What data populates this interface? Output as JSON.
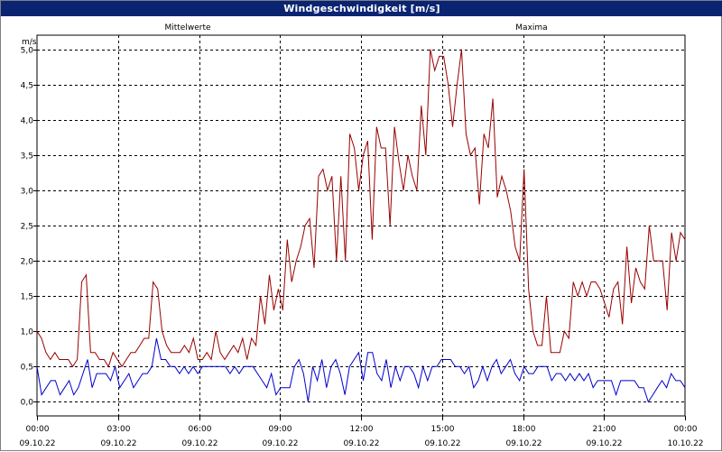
{
  "window": {
    "title": "Windgeschwindigkeit [m/s]"
  },
  "chart_data": {
    "type": "line",
    "title": "Windgeschwindigkeit [m/s]",
    "ylabel": "m/s",
    "ylim": [
      -0.2,
      5.2
    ],
    "yticks": [
      "0,0",
      "0,5",
      "1,0",
      "1,5",
      "2,0",
      "2,5",
      "3,0",
      "3,5",
      "4,0",
      "4,5",
      "5,0"
    ],
    "xlim": [
      0,
      24
    ],
    "xticks": [
      {
        "time": "00:00",
        "date": "09.10.22"
      },
      {
        "time": "03:00",
        "date": "09.10.22"
      },
      {
        "time": "06:00",
        "date": "09.10.22"
      },
      {
        "time": "09:00",
        "date": "09.10.22"
      },
      {
        "time": "12:00",
        "date": "09.10.22"
      },
      {
        "time": "15:00",
        "date": "09.10.22"
      },
      {
        "time": "18:00",
        "date": "09.10.22"
      },
      {
        "time": "21:00",
        "date": "09.10.22"
      },
      {
        "time": "00:00",
        "date": "10.10.22"
      }
    ],
    "grid": true,
    "series": [
      {
        "name": "Mittelwerte",
        "color": "#0000cc",
        "values": [
          0.5,
          0.1,
          0.2,
          0.3,
          0.3,
          0.1,
          0.2,
          0.3,
          0.1,
          0.2,
          0.4,
          0.6,
          0.2,
          0.4,
          0.4,
          0.4,
          0.3,
          0.5,
          0.2,
          0.3,
          0.4,
          0.2,
          0.3,
          0.4,
          0.4,
          0.5,
          0.9,
          0.6,
          0.6,
          0.5,
          0.5,
          0.4,
          0.5,
          0.4,
          0.5,
          0.4,
          0.5,
          0.5,
          0.5,
          0.5,
          0.5,
          0.5,
          0.4,
          0.5,
          0.4,
          0.5,
          0.5,
          0.5,
          0.4,
          0.3,
          0.2,
          0.4,
          0.1,
          0.2,
          0.2,
          0.2,
          0.5,
          0.6,
          0.4,
          0.0,
          0.5,
          0.3,
          0.6,
          0.2,
          0.5,
          0.6,
          0.4,
          0.1,
          0.5,
          0.6,
          0.7,
          0.3,
          0.7,
          0.7,
          0.4,
          0.3,
          0.6,
          0.2,
          0.5,
          0.3,
          0.5,
          0.5,
          0.4,
          0.2,
          0.5,
          0.3,
          0.5,
          0.5,
          0.6,
          0.6,
          0.6,
          0.5,
          0.5,
          0.4,
          0.5,
          0.2,
          0.3,
          0.5,
          0.3,
          0.5,
          0.6,
          0.4,
          0.5,
          0.6,
          0.4,
          0.3,
          0.5,
          0.4,
          0.4,
          0.5,
          0.5,
          0.5,
          0.3,
          0.4,
          0.4,
          0.3,
          0.4,
          0.3,
          0.4,
          0.3,
          0.4,
          0.2,
          0.3,
          0.3,
          0.3,
          0.3,
          0.1,
          0.3,
          0.3,
          0.3,
          0.3,
          0.2,
          0.2,
          0.0,
          0.1,
          0.2,
          0.3,
          0.2,
          0.4,
          0.3,
          0.3,
          0.2
        ],
        "label_position": "left"
      },
      {
        "name": "Maxima",
        "color": "#990000",
        "values": [
          1.0,
          0.9,
          0.7,
          0.6,
          0.7,
          0.6,
          0.6,
          0.6,
          0.5,
          0.6,
          1.7,
          1.8,
          0.7,
          0.7,
          0.6,
          0.6,
          0.5,
          0.7,
          0.6,
          0.5,
          0.6,
          0.7,
          0.7,
          0.8,
          0.9,
          0.9,
          1.7,
          1.6,
          1.0,
          0.8,
          0.7,
          0.7,
          0.7,
          0.8,
          0.7,
          0.9,
          0.6,
          0.6,
          0.7,
          0.6,
          1.0,
          0.7,
          0.6,
          0.7,
          0.8,
          0.7,
          0.9,
          0.6,
          0.9,
          0.8,
          1.5,
          1.1,
          1.8,
          1.3,
          1.6,
          1.3,
          2.3,
          1.7,
          2.0,
          2.2,
          2.5,
          2.6,
          1.9,
          3.2,
          3.3,
          3.0,
          3.2,
          2.0,
          3.2,
          2.0,
          3.8,
          3.6,
          3.0,
          3.5,
          3.7,
          2.3,
          3.9,
          3.6,
          3.6,
          2.5,
          3.9,
          3.4,
          3.0,
          3.5,
          3.2,
          3.0,
          4.2,
          3.5,
          5.0,
          4.7,
          4.9,
          4.9,
          4.5,
          3.9,
          4.5,
          5.0,
          3.8,
          3.5,
          3.6,
          2.8,
          3.8,
          3.6,
          4.3,
          2.9,
          3.2,
          3.0,
          2.7,
          2.2,
          2.0,
          3.3,
          1.6,
          1.0,
          0.8,
          0.8,
          1.5,
          0.7,
          0.7,
          0.7,
          1.0,
          0.9,
          1.7,
          1.5,
          1.7,
          1.5,
          1.7,
          1.7,
          1.6,
          1.4,
          1.2,
          1.6,
          1.7,
          1.1,
          2.2,
          1.4,
          1.9,
          1.7,
          1.6,
          2.5,
          2.0,
          2.0,
          2.0,
          1.3,
          2.4,
          2.0,
          2.4,
          2.3
        ],
        "label_position": "right"
      }
    ]
  }
}
